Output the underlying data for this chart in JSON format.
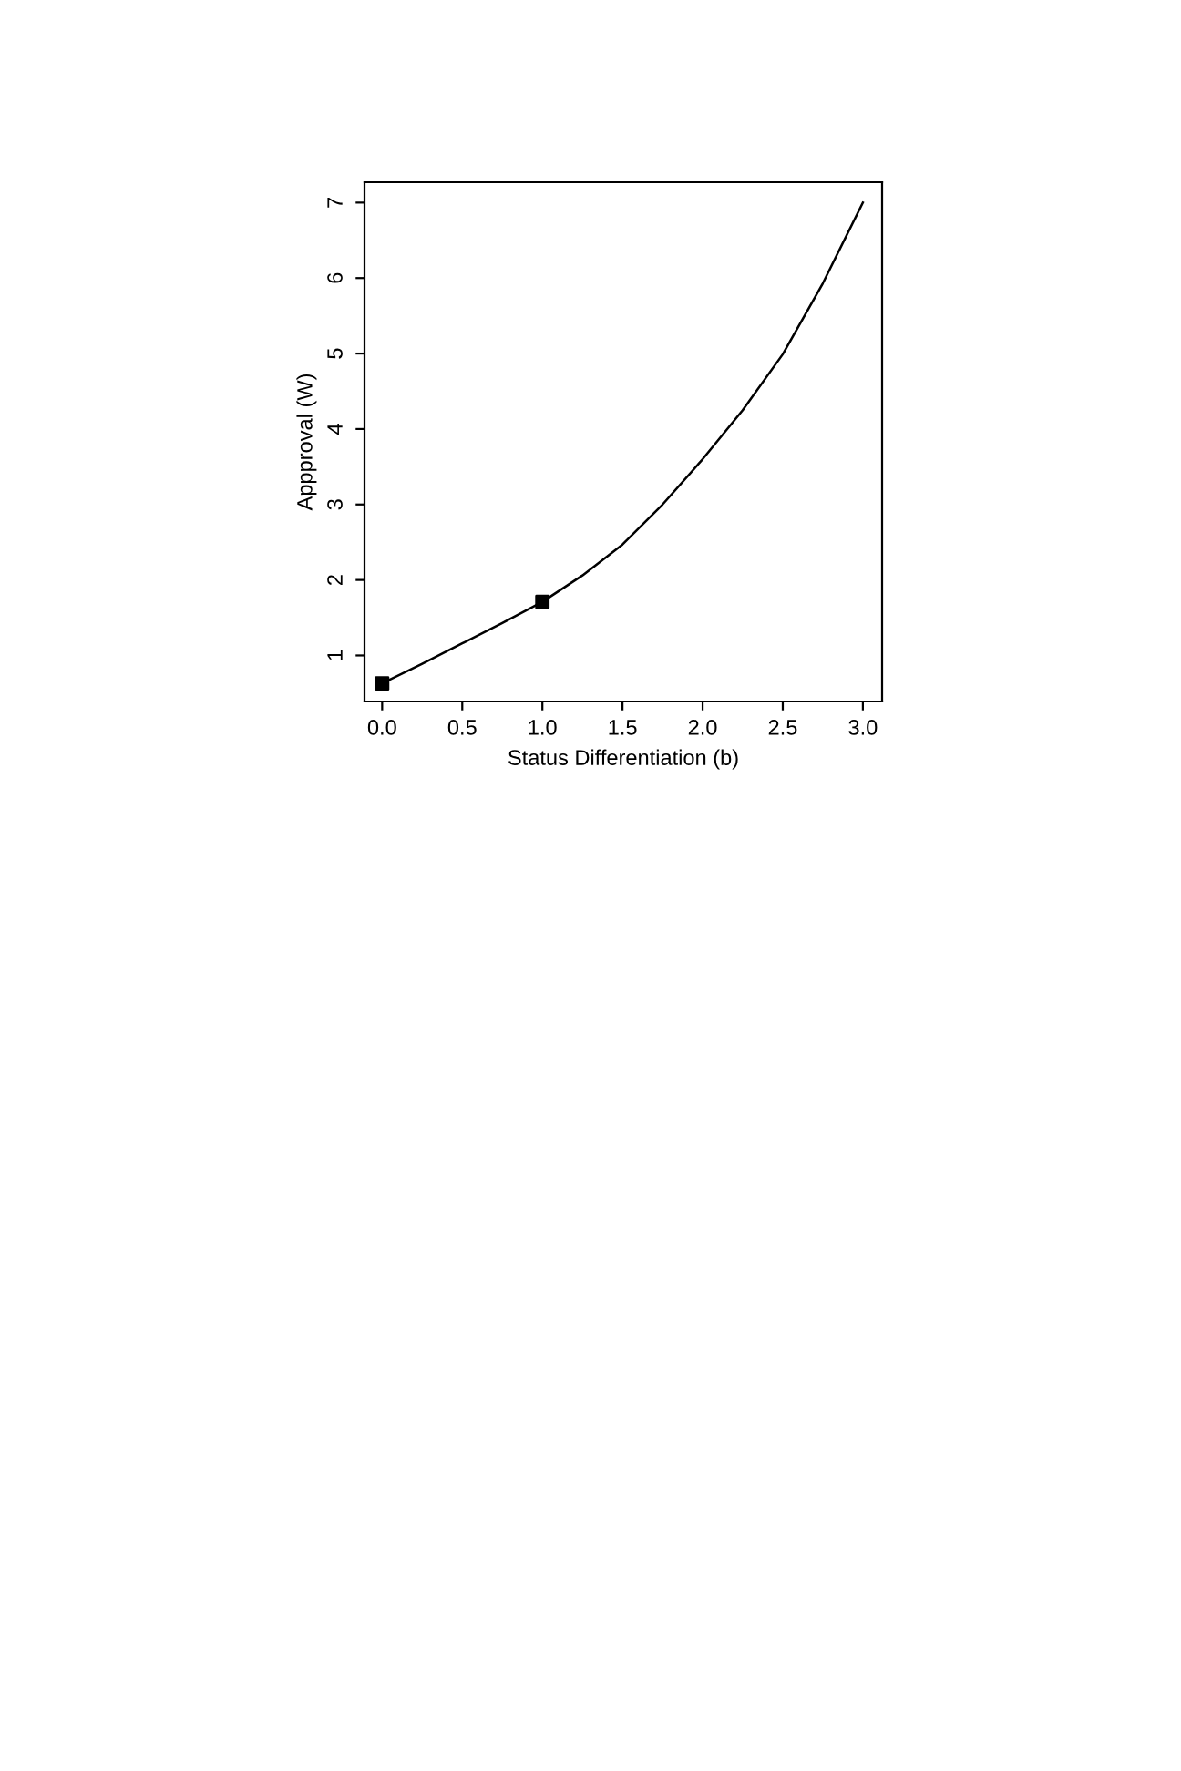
{
  "chart_data": {
    "type": "line",
    "xlabel": "Status Differentiation (b)",
    "ylabel": "Appproval (W)",
    "xlim": [
      -0.11,
      3.12
    ],
    "ylim": [
      0.39,
      7.27
    ],
    "xticks": [
      {
        "value": 0,
        "label": "0.0"
      },
      0.5,
      {
        "value": 1,
        "label": "1.0"
      },
      1.5,
      {
        "value": 2,
        "label": "2.0"
      },
      2.5,
      {
        "value": 3,
        "label": "3.0"
      }
    ],
    "yticks": [
      1,
      2,
      3,
      4,
      5,
      6,
      7
    ],
    "grid": false,
    "series": [
      {
        "color": "#000000",
        "marker": "none",
        "x": [
          0,
          0.25,
          0.5,
          0.75,
          1,
          1.25,
          1.5,
          1.75,
          2,
          2.25,
          2.5,
          2.75,
          3
        ],
        "values": [
          0.63,
          0.89,
          1.16,
          1.43,
          1.71,
          2.06,
          2.47,
          3.0,
          3.6,
          4.25,
          4.99,
          5.93,
          7.0
        ]
      },
      {
        "type": "scatter",
        "color": "#000000",
        "marker": "square",
        "x": [
          0,
          1
        ],
        "values": [
          0.63,
          1.71
        ]
      }
    ]
  }
}
